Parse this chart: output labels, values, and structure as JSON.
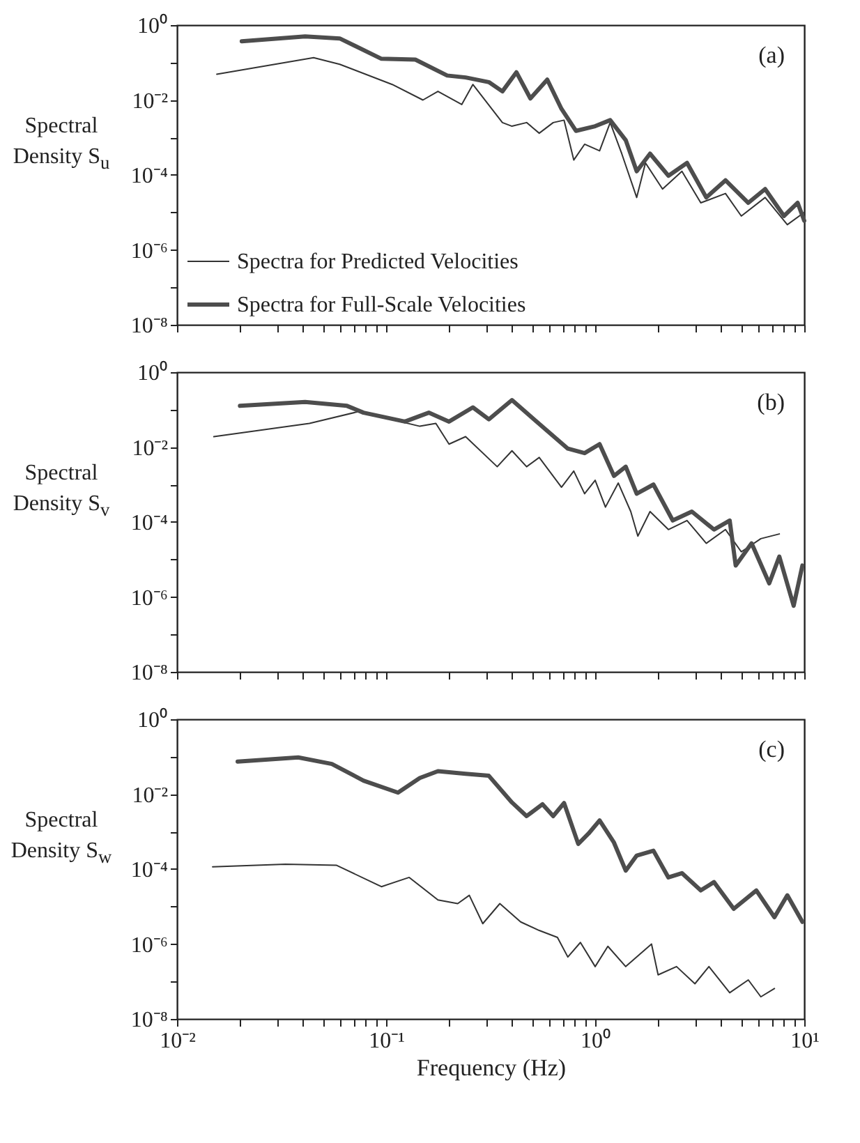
{
  "chart_data": [
    {
      "type": "line",
      "ylabel": "Spectral Density S$_{u}$",
      "annotations": [
        "(a)"
      ],
      "log": "xy",
      "legend": "bottom left",
      "tick_labels": "y",
      "xlim": [
        0.01,
        10
      ],
      "ylim": [
        1e-08,
        1
      ],
      "xticks": [
        {
          "value": 0.01,
          "label": null
        },
        {
          "value": 0.02,
          "label": null
        },
        {
          "value": 0.03,
          "label": null
        },
        {
          "value": 0.04,
          "label": null
        },
        {
          "value": 0.05,
          "label": null
        },
        {
          "value": 0.06,
          "label": null
        },
        {
          "value": 0.07,
          "label": null
        },
        {
          "value": 0.08,
          "label": null
        },
        {
          "value": 0.09,
          "label": null
        },
        {
          "value": 0.1,
          "label": null
        },
        {
          "value": 0.2,
          "label": null
        },
        {
          "value": 0.3,
          "label": null
        },
        {
          "value": 0.4,
          "label": null
        },
        {
          "value": 0.5,
          "label": null
        },
        {
          "value": 0.6,
          "label": null
        },
        {
          "value": 0.7,
          "label": null
        },
        {
          "value": 0.8,
          "label": null
        },
        {
          "value": 0.9,
          "label": null
        },
        {
          "value": 1,
          "label": null
        },
        {
          "value": 2,
          "label": null
        },
        {
          "value": 3,
          "label": null
        },
        {
          "value": 4,
          "label": null
        },
        {
          "value": 5,
          "label": null
        },
        {
          "value": 6,
          "label": null
        },
        {
          "value": 7,
          "label": null
        },
        {
          "value": 8,
          "label": null
        },
        {
          "value": 9,
          "label": null
        },
        {
          "value": 10,
          "label": null
        }
      ],
      "yticks": [
        {
          "value": 1,
          "label": "10⁰"
        },
        {
          "value": 0.1,
          "label": null
        },
        {
          "value": 0.01,
          "label": "10⁻²"
        },
        {
          "value": 0.001,
          "label": null
        },
        {
          "value": 0.0001,
          "label": "10⁻⁴"
        },
        {
          "value": 1e-05,
          "label": null
        },
        {
          "value": 1e-06,
          "label": "10⁻⁶"
        },
        {
          "value": 1e-07,
          "label": null
        },
        {
          "value": 1e-08,
          "label": "10⁻⁸"
        }
      ],
      "series": [
        {
          "name": "Spectra for Predicted Velocities",
          "color": "#333333",
          "x": [
            0.0155,
            0.045,
            0.06,
            0.107,
            0.15,
            0.177,
            0.23,
            0.26,
            0.36,
            0.4,
            0.47,
            0.54,
            0.63,
            0.71,
            0.79,
            0.89,
            1.05,
            1.18,
            1.34,
            1.58,
            1.74,
            2.1,
            2.6,
            3.2,
            4.2,
            5.0,
            6.5,
            8.3,
            10
          ],
          "values": [
            0.049,
            0.135,
            0.09,
            0.026,
            0.01,
            0.017,
            0.0076,
            0.026,
            0.0025,
            0.002,
            0.0025,
            0.0013,
            0.0025,
            0.0029,
            0.00025,
            0.00066,
            0.00044,
            0.0025,
            0.00037,
            2.5e-05,
            0.00021,
            4.2e-05,
            0.000125,
            1.8e-05,
            3.2e-05,
            8e-06,
            2.5e-05,
            4.7e-06,
            1e-05
          ]
        },
        {
          "name": "Spectra for Full-Scale Velocities",
          "color": "#4d4d4d",
          "x": [
            0.0204,
            0.041,
            0.06,
            0.095,
            0.138,
            0.196,
            0.24,
            0.31,
            0.36,
            0.42,
            0.49,
            0.59,
            0.69,
            0.81,
            1.0,
            1.18,
            1.4,
            1.58,
            1.83,
            2.24,
            2.75,
            3.4,
            4.2,
            5.4,
            6.5,
            8.0,
            9.3,
            10
          ],
          "values": [
            0.37,
            0.5,
            0.44,
            0.126,
            0.12,
            0.045,
            0.04,
            0.03,
            0.017,
            0.055,
            0.011,
            0.035,
            0.0058,
            0.0015,
            0.002,
            0.0029,
            0.00085,
            0.000125,
            0.00037,
            9.5e-05,
            0.00021,
            2.5e-05,
            7.2e-05,
            1.8e-05,
            4.2e-05,
            8e-06,
            1.8e-05,
            6e-06
          ]
        }
      ]
    },
    {
      "type": "line",
      "ylabel": "Spectral Density S$_{v}$",
      "annotations": [
        "(b)"
      ],
      "log": "xy",
      "tick_labels": "y",
      "xlim": [
        0.01,
        10
      ],
      "ylim": [
        1e-08,
        1
      ],
      "xticks": [
        {
          "value": 0.01,
          "label": null
        },
        {
          "value": 0.02,
          "label": null
        },
        {
          "value": 0.03,
          "label": null
        },
        {
          "value": 0.04,
          "label": null
        },
        {
          "value": 0.05,
          "label": null
        },
        {
          "value": 0.06,
          "label": null
        },
        {
          "value": 0.07,
          "label": null
        },
        {
          "value": 0.08,
          "label": null
        },
        {
          "value": 0.09,
          "label": null
        },
        {
          "value": 0.1,
          "label": null
        },
        {
          "value": 0.2,
          "label": null
        },
        {
          "value": 0.3,
          "label": null
        },
        {
          "value": 0.4,
          "label": null
        },
        {
          "value": 0.5,
          "label": null
        },
        {
          "value": 0.6,
          "label": null
        },
        {
          "value": 0.7,
          "label": null
        },
        {
          "value": 0.8,
          "label": null
        },
        {
          "value": 0.9,
          "label": null
        },
        {
          "value": 1,
          "label": null
        },
        {
          "value": 2,
          "label": null
        },
        {
          "value": 3,
          "label": null
        },
        {
          "value": 4,
          "label": null
        },
        {
          "value": 5,
          "label": null
        },
        {
          "value": 6,
          "label": null
        },
        {
          "value": 7,
          "label": null
        },
        {
          "value": 8,
          "label": null
        },
        {
          "value": 9,
          "label": null
        },
        {
          "value": 10,
          "label": null
        }
      ],
      "yticks": [
        {
          "value": 1,
          "label": "10⁰"
        },
        {
          "value": 0.1,
          "label": null
        },
        {
          "value": 0.01,
          "label": "10⁻²"
        },
        {
          "value": 0.001,
          "label": null
        },
        {
          "value": 0.0001,
          "label": "10⁻⁴"
        },
        {
          "value": 1e-05,
          "label": null
        },
        {
          "value": 1e-06,
          "label": "10⁻⁶"
        },
        {
          "value": 1e-07,
          "label": null
        },
        {
          "value": 1e-08,
          "label": "10⁻⁸"
        }
      ],
      "series": [
        {
          "color": "#333333",
          "x": [
            0.015,
            0.043,
            0.074,
            0.145,
            0.173,
            0.2,
            0.24,
            0.34,
            0.4,
            0.47,
            0.54,
            0.69,
            0.79,
            0.89,
            1.0,
            1.12,
            1.29,
            1.48,
            1.6,
            1.83,
            2.24,
            2.75,
            3.4,
            4.2,
            5.0,
            6.2,
            7.6
          ],
          "values": [
            0.019,
            0.043,
            0.089,
            0.036,
            0.043,
            0.012,
            0.019,
            0.003,
            0.008,
            0.003,
            0.0053,
            0.00085,
            0.0023,
            0.00057,
            0.0013,
            0.00025,
            0.0011,
            0.00019,
            4.2e-05,
            0.00019,
            6.3e-05,
            0.00011,
            2.7e-05,
            6.3e-05,
            1.6e-05,
            3.6e-05,
            4.8e-05
          ]
        },
        {
          "color": "#4d4d4d",
          "x": [
            0.02,
            0.041,
            0.065,
            0.078,
            0.123,
            0.16,
            0.2,
            0.26,
            0.31,
            0.4,
            0.51,
            0.74,
            0.89,
            1.05,
            1.23,
            1.4,
            1.58,
            1.9,
            2.35,
            2.9,
            3.7,
            4.4,
            4.7,
            5.6,
            6.8,
            7.6,
            8.9,
            9.8
          ],
          "values": [
            0.126,
            0.16,
            0.126,
            0.083,
            0.048,
            0.083,
            0.048,
            0.115,
            0.055,
            0.18,
            0.055,
            0.0091,
            0.0069,
            0.012,
            0.0017,
            0.003,
            0.00057,
            0.001,
            0.00011,
            0.00019,
            6.3e-05,
            0.00011,
            6.9e-06,
            2.7e-05,
            2.3e-06,
            1.2e-05,
            5.8e-07,
            6.9e-06
          ]
        }
      ]
    },
    {
      "type": "line",
      "ylabel": "Spectral Density S$_{w}$",
      "xlabel": "Frequency (Hz)",
      "annotations": [
        "(c)"
      ],
      "log": "xy",
      "xlim": [
        0.01,
        10
      ],
      "ylim": [
        1e-08,
        1
      ],
      "xticks": [
        {
          "value": 0.01,
          "label": "10⁻²"
        },
        {
          "value": 0.02,
          "label": null
        },
        {
          "value": 0.03,
          "label": null
        },
        {
          "value": 0.04,
          "label": null
        },
        {
          "value": 0.05,
          "label": null
        },
        {
          "value": 0.06,
          "label": null
        },
        {
          "value": 0.07,
          "label": null
        },
        {
          "value": 0.08,
          "label": null
        },
        {
          "value": 0.09,
          "label": null
        },
        {
          "value": 0.1,
          "label": "10⁻¹"
        },
        {
          "value": 0.2,
          "label": null
        },
        {
          "value": 0.3,
          "label": null
        },
        {
          "value": 0.4,
          "label": null
        },
        {
          "value": 0.5,
          "label": null
        },
        {
          "value": 0.6,
          "label": null
        },
        {
          "value": 0.7,
          "label": null
        },
        {
          "value": 0.8,
          "label": null
        },
        {
          "value": 0.9,
          "label": null
        },
        {
          "value": 1,
          "label": "10⁰"
        },
        {
          "value": 2,
          "label": null
        },
        {
          "value": 3,
          "label": null
        },
        {
          "value": 4,
          "label": null
        },
        {
          "value": 5,
          "label": null
        },
        {
          "value": 6,
          "label": null
        },
        {
          "value": 7,
          "label": null
        },
        {
          "value": 8,
          "label": null
        },
        {
          "value": 9,
          "label": null
        },
        {
          "value": 10,
          "label": "10¹"
        }
      ],
      "yticks": [
        {
          "value": 1,
          "label": "10⁰"
        },
        {
          "value": 0.1,
          "label": null
        },
        {
          "value": 0.01,
          "label": "10⁻²"
        },
        {
          "value": 0.001,
          "label": null
        },
        {
          "value": 0.0001,
          "label": "10⁻⁴"
        },
        {
          "value": 1e-05,
          "label": null
        },
        {
          "value": 1e-06,
          "label": "10⁻⁶"
        },
        {
          "value": 1e-07,
          "label": null
        },
        {
          "value": 1e-08,
          "label": "10⁻⁸"
        }
      ],
      "series": [
        {
          "color": "#333333",
          "x": [
            0.0148,
            0.033,
            0.058,
            0.095,
            0.129,
            0.177,
            0.22,
            0.25,
            0.29,
            0.35,
            0.44,
            0.54,
            0.66,
            0.74,
            0.85,
            1.0,
            1.15,
            1.4,
            1.86,
            2.0,
            2.45,
            3.0,
            3.5,
            4.4,
            5.4,
            6.2,
            7.2
          ],
          "values": [
            0.000115,
            0.000135,
            0.000126,
            3.4e-05,
            6e-05,
            1.5e-05,
            1.2e-05,
            2e-05,
            3.5e-06,
            1.2e-05,
            3.9e-06,
            2.3e-06,
            1.5e-06,
            4.5e-07,
            1.1e-06,
            2.5e-07,
            8.7e-07,
            2.5e-07,
            1e-06,
            1.5e-07,
            2.5e-07,
            8.7e-08,
            2.5e-07,
            5e-08,
            1.1e-07,
            3.9e-08,
            6.5e-08
          ]
        },
        {
          "color": "#4d4d4d",
          "x": [
            0.0195,
            0.038,
            0.055,
            0.078,
            0.114,
            0.145,
            0.177,
            0.24,
            0.31,
            0.4,
            0.47,
            0.56,
            0.63,
            0.71,
            0.83,
            0.93,
            1.05,
            1.23,
            1.4,
            1.58,
            1.9,
            2.24,
            2.6,
            3.2,
            3.7,
            4.6,
            5.9,
            7.2,
            8.3,
            9.8
          ],
          "values": [
            0.074,
            0.096,
            0.064,
            0.023,
            0.011,
            0.027,
            0.041,
            0.035,
            0.031,
            0.006,
            0.0026,
            0.0054,
            0.0026,
            0.0058,
            0.00047,
            0.00089,
            0.002,
            0.00051,
            9.1e-05,
            0.00023,
            0.00031,
            6e-05,
            7.8e-05,
            2.7e-05,
            4.5e-05,
            8.7e-06,
            2.7e-05,
            5.2e-06,
            2e-05,
            3.9e-06
          ]
        }
      ]
    }
  ]
}
